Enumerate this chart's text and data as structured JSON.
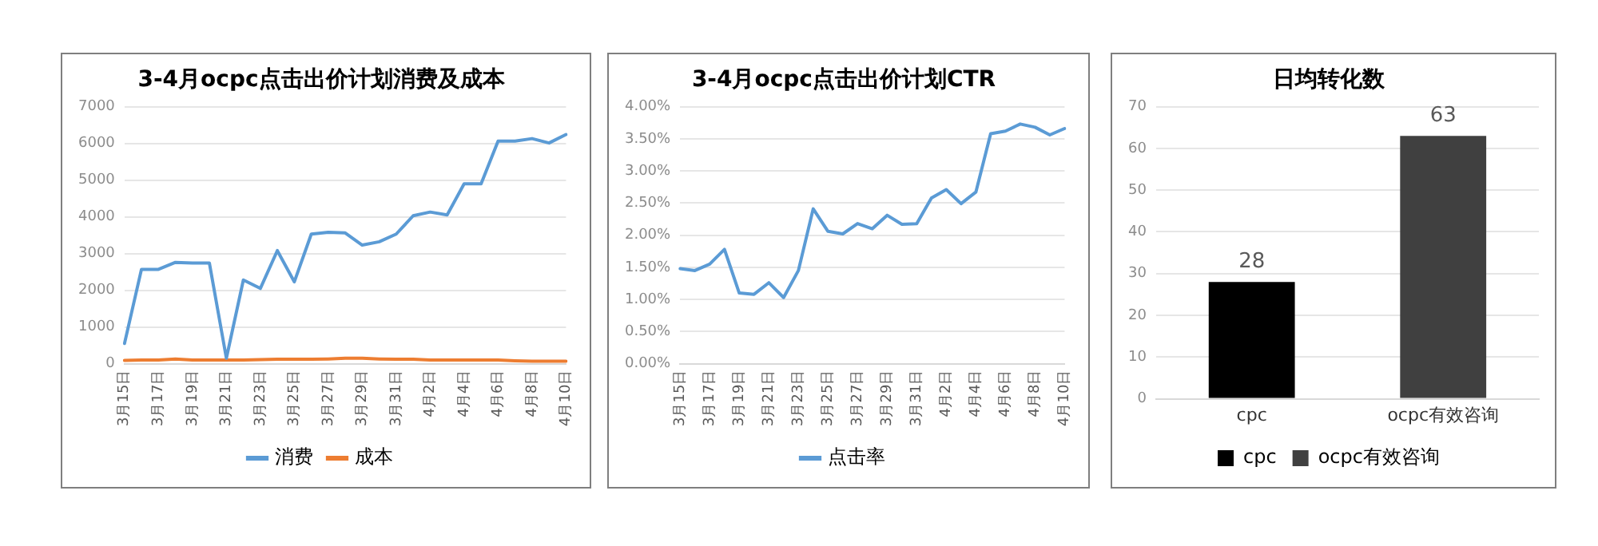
{
  "chart_data": [
    {
      "type": "line",
      "title": "3-4月ocpc点击出价计划消费及成本",
      "categories": [
        "3月15日",
        null,
        "3月17日",
        null,
        "3月19日",
        null,
        "3月21日",
        null,
        "3月23日",
        null,
        "3月25日",
        null,
        "3月27日",
        null,
        "3月29日",
        null,
        "3月31日",
        null,
        "4月2日",
        null,
        "4月4日",
        null,
        "4月6日",
        null,
        "4月8日",
        null,
        "4月10日"
      ],
      "series": [
        {
          "name": "消费",
          "color": "#5b9bd5",
          "values": [
            550,
            2570,
            2570,
            2760,
            2740,
            2740,
            150,
            2280,
            2050,
            3080,
            2230,
            3530,
            3580,
            3560,
            3230,
            3320,
            3530,
            4030,
            4130,
            4050,
            4900,
            4900,
            6060,
            6060,
            6130,
            6010,
            6240
          ]
        },
        {
          "name": "成本",
          "color": "#ed7d31",
          "values": [
            90,
            100,
            100,
            130,
            100,
            100,
            100,
            100,
            110,
            120,
            120,
            120,
            130,
            150,
            150,
            130,
            120,
            120,
            100,
            100,
            100,
            100,
            100,
            80,
            70,
            70,
            70
          ]
        }
      ],
      "ylim": [
        0,
        7000
      ],
      "yticks": [
        0,
        1000,
        2000,
        3000,
        4000,
        5000,
        6000,
        7000
      ],
      "grid": "y",
      "legend": "bottom",
      "marker": "none"
    },
    {
      "type": "line",
      "title": "3-4月ocpc点击出价计划CTR",
      "categories": [
        "3月15日",
        null,
        "3月17日",
        null,
        "3月19日",
        null,
        "3月21日",
        null,
        "3月23日",
        null,
        "3月25日",
        null,
        "3月27日",
        null,
        "3月29日",
        null,
        "3月31日",
        null,
        "4月2日",
        null,
        "4月4日",
        null,
        "4月6日",
        null,
        "4月8日",
        null,
        "4月10日"
      ],
      "series": [
        {
          "name": "点击率",
          "color": "#5b9bd5",
          "values": [
            1.48,
            1.45,
            1.55,
            1.78,
            1.1,
            1.08,
            1.26,
            1.03,
            1.45,
            2.41,
            2.06,
            2.02,
            2.18,
            2.1,
            2.31,
            2.17,
            2.18,
            2.58,
            2.71,
            2.49,
            2.67,
            3.58,
            3.62,
            3.73,
            3.68,
            3.56,
            3.66
          ]
        }
      ],
      "ylim": [
        0,
        4
      ],
      "yticks": [
        {
          "value": 0,
          "label": "0.00%"
        },
        {
          "value": 0.5,
          "label": "0.50%"
        },
        {
          "value": 1,
          "label": "1.00%"
        },
        {
          "value": 1.5,
          "label": "1.50%"
        },
        {
          "value": 2,
          "label": "2.00%"
        },
        {
          "value": 2.5,
          "label": "2.50%"
        },
        {
          "value": 3,
          "label": "3.00%"
        },
        {
          "value": 3.5,
          "label": "3.50%"
        },
        {
          "value": 4,
          "label": "4.00%"
        }
      ],
      "grid": "y",
      "legend": "bottom",
      "marker": "none"
    },
    {
      "type": "bar",
      "title": "日均转化数",
      "categories": [
        "cpc",
        "ocpc有效咨询"
      ],
      "series": [
        {
          "name": "cpc",
          "color": "#000000",
          "values": [
            28,
            null
          ]
        },
        {
          "name": "ocpc有效咨询",
          "color": "#404040",
          "values": [
            null,
            63
          ]
        }
      ],
      "ylim": [
        0,
        70
      ],
      "yticks": [
        0,
        10,
        20,
        30,
        40,
        50,
        60,
        70
      ],
      "grid": "y",
      "legend": "bottom",
      "data_labels": true
    }
  ]
}
